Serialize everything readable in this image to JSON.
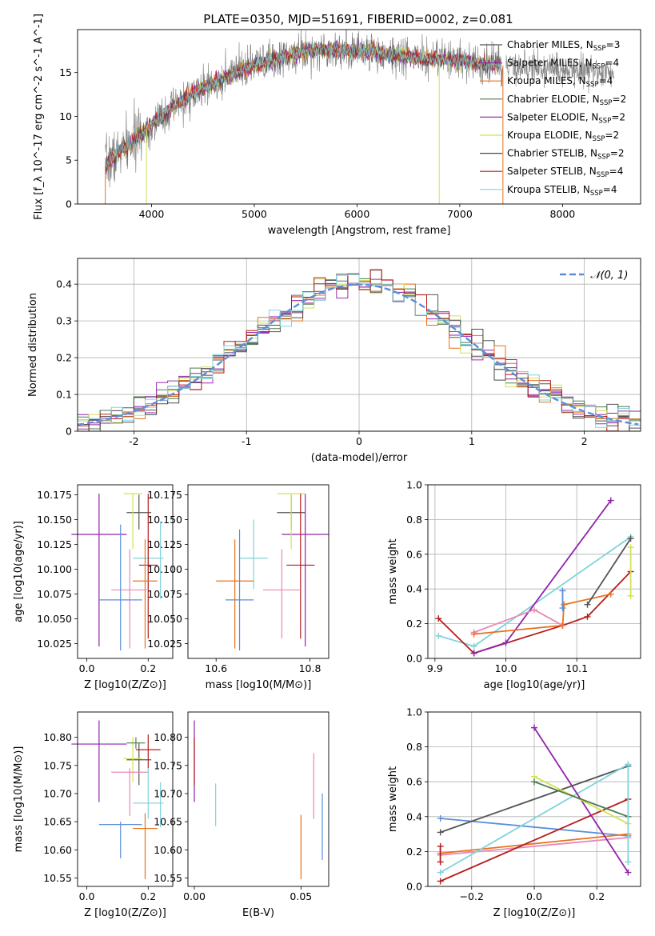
{
  "chart_data": [
    {
      "id": "spectrum",
      "type": "line",
      "title": "PLATE=0350, MJD=51691, FIBERID=0002, z=0.081",
      "xlabel": "wavelength [Angstrom, rest frame]",
      "ylabel": "Flux [f_λ 10^-17 erg cm^-2 s^-1 A^-1]",
      "xlim": [
        3280,
        8760
      ],
      "ylim": [
        0,
        19.9
      ],
      "xticks": [
        4000,
        5000,
        6000,
        7000,
        8000
      ],
      "yticks": [
        0,
        5,
        10,
        15
      ],
      "grid": false,
      "legend_position": "right",
      "series": [
        {
          "name": "Chabrier MILES",
          "nssp": "3",
          "color": "#555555"
        },
        {
          "name": "Salpeter MILES",
          "nssp": "4",
          "color": "#8e24aa"
        },
        {
          "name": "Kroupa MILES",
          "nssp": "4",
          "color": "#e8711a"
        },
        {
          "name": "Chabrier ELODIE",
          "nssp": "2",
          "color": "#4f7a4f"
        },
        {
          "name": "Salpeter ELODIE",
          "nssp": "2",
          "color": "#9a2fb0"
        },
        {
          "name": "Kroupa ELODIE",
          "nssp": "2",
          "color": "#d4e157"
        },
        {
          "name": "Chabrier STELIB",
          "nssp": "2",
          "color": "#4a4a4a"
        },
        {
          "name": "Salpeter STELIB",
          "nssp": "4",
          "color": "#b71c1c"
        },
        {
          "name": "Kroupa STELIB",
          "nssp": "4",
          "color": "#7fd3dc"
        }
      ],
      "continuum": {
        "wavelength": [
          3550,
          3700,
          3850,
          4000,
          4200,
          4400,
          4600,
          4800,
          5000,
          5200,
          5400,
          5600,
          5800,
          6000,
          6200,
          6400,
          6600,
          6800,
          7000,
          7200,
          7400
        ],
        "flux": [
          4.5,
          6.0,
          7.5,
          9.0,
          11.0,
          12.5,
          13.8,
          14.8,
          15.8,
          16.4,
          17.2,
          17.6,
          17.6,
          17.5,
          17.3,
          17.0,
          16.6,
          16.5,
          16.3,
          16.0,
          15.8
        ]
      },
      "extension": {
        "wavelength": [
          7450,
          8000,
          8500
        ],
        "flux": [
          15.8,
          15.3,
          15.0
        ],
        "color": "#808080"
      }
    },
    {
      "id": "residuals",
      "type": "histogram",
      "xlabel": "(data-model)/error",
      "ylabel": "Normed distribution",
      "xlim": [
        -2.5,
        2.5
      ],
      "ylim": [
        0,
        0.47
      ],
      "xticks": [
        -2,
        -1,
        0,
        1,
        2
      ],
      "yticks": [
        0.0,
        0.1,
        0.2,
        0.3,
        0.4
      ],
      "grid": true,
      "legend_position": "top-right",
      "legend": [
        {
          "label": "𝒩(0, 1)",
          "style": "dashed",
          "color": "#5a8fd8"
        }
      ],
      "bin_width": 0.1,
      "series_colors": [
        "#555555",
        "#8e24aa",
        "#e8711a",
        "#4f7a4f",
        "#9a2fb0",
        "#d4e157",
        "#4a4a4a",
        "#b71c1c",
        "#7fd3dc"
      ]
    },
    {
      "id": "age_vs_Z",
      "type": "errorbar",
      "xlabel": "Z [log10(Z/Z⊙)]",
      "ylabel": "age  [log10(age/yr)]",
      "xlim": [
        -0.03,
        0.28
      ],
      "ylim": [
        10.01,
        10.185
      ],
      "xticks": [
        0.0,
        0.2
      ],
      "xtick_labels": [
        "0.0",
        "0.2"
      ],
      "yticks": [
        10.025,
        10.05,
        10.075,
        10.1,
        10.125,
        10.15,
        10.175
      ],
      "ytick_labels": [
        "10.025",
        "10.050",
        "10.075",
        "10.100",
        "10.125",
        "10.150",
        "10.175"
      ],
      "grid": false,
      "points": [
        {
          "x": 0.04,
          "xerr": 0.09,
          "y": 10.135,
          "ylo": 10.022,
          "yhi": 10.176,
          "color": "#8e24aa"
        },
        {
          "x": 0.17,
          "xerr": 0.04,
          "y": 10.157,
          "ylo": 10.14,
          "yhi": 10.175,
          "color": "#555555"
        },
        {
          "x": 0.15,
          "xerr": 0.03,
          "y": 10.176,
          "ylo": 10.12,
          "yhi": 10.176,
          "color": "#d4e157"
        },
        {
          "x": 0.2,
          "xerr": 0.05,
          "y": 10.111,
          "ylo": 10.08,
          "yhi": 10.13,
          "color": "#7fd3dc"
        },
        {
          "x": 0.24,
          "xerr": 0.0,
          "y": 10.11,
          "ylo": 10.07,
          "yhi": 10.148,
          "color": "#7fd3dc"
        },
        {
          "x": 0.2,
          "xerr": 0.03,
          "y": 10.104,
          "ylo": 10.03,
          "yhi": 10.176,
          "color": "#b71c1c"
        },
        {
          "x": 0.19,
          "xerr": 0.04,
          "y": 10.088,
          "ylo": 10.02,
          "yhi": 10.13,
          "color": "#e8711a"
        },
        {
          "x": 0.14,
          "xerr": 0.06,
          "y": 10.079,
          "ylo": 10.02,
          "yhi": 10.12,
          "color": "#e889b5"
        },
        {
          "x": 0.11,
          "xerr": 0.07,
          "y": 10.069,
          "ylo": 10.018,
          "yhi": 10.145,
          "color": "#5a8fd8"
        }
      ]
    },
    {
      "id": "age_vs_mass",
      "type": "errorbar",
      "xlabel": "mass [log10(M/M⊙)]",
      "xlim": [
        10.54,
        10.84
      ],
      "ylim": [
        10.01,
        10.185
      ],
      "xticks": [
        10.6,
        10.8
      ],
      "xtick_labels": [
        "10.6",
        "10.8"
      ],
      "yticks": [
        10.025,
        10.05,
        10.075,
        10.1,
        10.125,
        10.15,
        10.175
      ],
      "ytick_labels": [
        "10.025",
        "10.050",
        "10.075",
        "10.100",
        "10.125",
        "10.150",
        "10.175"
      ],
      "grid": false,
      "points": [
        {
          "x": 10.79,
          "xerr": 0.05,
          "y": 10.135,
          "ylo": 10.022,
          "yhi": 10.176,
          "color": "#8e24aa"
        },
        {
          "x": 10.76,
          "xerr": 0.03,
          "y": 10.157,
          "ylo": 10.14,
          "yhi": 10.175,
          "color": "#555555"
        },
        {
          "x": 10.76,
          "xerr": 0.03,
          "y": 10.176,
          "ylo": 10.12,
          "yhi": 10.176,
          "color": "#d4e157"
        },
        {
          "x": 10.68,
          "xerr": 0.03,
          "y": 10.111,
          "ylo": 10.08,
          "yhi": 10.15,
          "color": "#7fd3dc"
        },
        {
          "x": 10.78,
          "xerr": 0.03,
          "y": 10.104,
          "ylo": 10.03,
          "yhi": 10.176,
          "color": "#b71c1c"
        },
        {
          "x": 10.64,
          "xerr": 0.04,
          "y": 10.088,
          "ylo": 10.02,
          "yhi": 10.13,
          "color": "#e8711a"
        },
        {
          "x": 10.74,
          "xerr": 0.04,
          "y": 10.079,
          "ylo": 10.03,
          "yhi": 10.12,
          "color": "#e889b5"
        },
        {
          "x": 10.65,
          "xerr": 0.03,
          "y": 10.069,
          "ylo": 10.018,
          "yhi": 10.14,
          "color": "#5a8fd8"
        }
      ]
    },
    {
      "id": "weight_vs_age",
      "type": "line",
      "xlabel": "age  [log10(age/yr)]",
      "ylabel": "mass weight",
      "xlim": [
        9.89,
        10.19
      ],
      "ylim": [
        0,
        1.0
      ],
      "xticks": [
        9.9,
        10.0,
        10.1
      ],
      "xtick_labels": [
        "9.9",
        "10.0",
        "10.1"
      ],
      "yticks": [
        0.0,
        0.2,
        0.4,
        0.6,
        0.8,
        1.0
      ],
      "ytick_labels": [
        "0.0",
        "0.2",
        "0.4",
        "0.6",
        "0.8",
        "1.0"
      ],
      "grid": true,
      "series": [
        {
          "color": "#7fd3dc",
          "x": [
            9.905,
            9.955,
            10.176
          ],
          "y": [
            0.13,
            0.07,
            0.7
          ]
        },
        {
          "color": "#b71c1c",
          "x": [
            9.905,
            9.955,
            10.08,
            10.115,
            10.176
          ],
          "y": [
            0.23,
            0.03,
            0.19,
            0.24,
            0.5
          ]
        },
        {
          "color": "#8e24aa",
          "x": [
            9.955,
            10.0,
            10.148
          ],
          "y": [
            0.03,
            0.09,
            0.91
          ]
        },
        {
          "color": "#e889b5",
          "x": [
            9.955,
            10.04,
            10.08
          ],
          "y": [
            0.15,
            0.28,
            0.19
          ]
        },
        {
          "color": "#e8711a",
          "x": [
            9.955,
            10.08,
            10.082,
            10.148
          ],
          "y": [
            0.14,
            0.19,
            0.31,
            0.37
          ]
        },
        {
          "color": "#5a8fd8",
          "x": [
            10.08,
            10.08
          ],
          "y": [
            0.29,
            0.39
          ]
        },
        {
          "color": "#555555",
          "x": [
            10.115,
            10.176
          ],
          "y": [
            0.31,
            0.69
          ]
        },
        {
          "color": "#d4e157",
          "x": [
            10.176,
            10.176
          ],
          "y": [
            0.36,
            0.64
          ]
        }
      ]
    },
    {
      "id": "mass_vs_Z",
      "type": "errorbar",
      "xlabel": "Z [log10(Z/Z⊙)]",
      "ylabel": "mass [log10(M/M⊙)]",
      "xlim": [
        -0.03,
        0.28
      ],
      "ylim": [
        10.535,
        10.845
      ],
      "xticks": [
        0.0,
        0.2
      ],
      "xtick_labels": [
        "0.0",
        "0.2"
      ],
      "yticks": [
        10.55,
        10.6,
        10.65,
        10.7,
        10.75,
        10.8
      ],
      "ytick_labels": [
        "10.55",
        "10.60",
        "10.65",
        "10.70",
        "10.75",
        "10.80"
      ],
      "grid": false,
      "points": [
        {
          "x": 0.04,
          "xerr": 0.09,
          "y": 10.788,
          "ylo": 10.685,
          "yhi": 10.83,
          "color": "#8e24aa"
        },
        {
          "x": 0.17,
          "xerr": 0.04,
          "y": 10.76,
          "ylo": 10.715,
          "yhi": 10.79,
          "color": "#555555"
        },
        {
          "x": 0.15,
          "xerr": 0.03,
          "y": 10.762,
          "ylo": 10.72,
          "yhi": 10.8,
          "color": "#d4e157"
        },
        {
          "x": 0.16,
          "xerr": 0.03,
          "y": 10.79,
          "ylo": 10.78,
          "yhi": 10.8,
          "color": "#4f7a4f"
        },
        {
          "x": 0.2,
          "xerr": 0.04,
          "y": 10.778,
          "ylo": 10.745,
          "yhi": 10.805,
          "color": "#b71c1c"
        },
        {
          "x": 0.14,
          "xerr": 0.06,
          "y": 10.738,
          "ylo": 10.66,
          "yhi": 10.745,
          "color": "#e889b5"
        },
        {
          "x": 0.2,
          "xerr": 0.05,
          "y": 10.683,
          "ylo": 10.655,
          "yhi": 10.745,
          "color": "#7fd3dc"
        },
        {
          "x": 0.24,
          "xerr": 0.0,
          "y": 10.68,
          "ylo": 10.64,
          "yhi": 10.72,
          "color": "#7fd3dc"
        },
        {
          "x": 0.11,
          "xerr": 0.07,
          "y": 10.645,
          "ylo": 10.585,
          "yhi": 10.65,
          "color": "#5a8fd8"
        },
        {
          "x": 0.19,
          "xerr": 0.04,
          "y": 10.638,
          "ylo": 10.548,
          "yhi": 10.665,
          "color": "#e8711a"
        }
      ]
    },
    {
      "id": "mass_vs_ebv",
      "type": "errorbar",
      "xlabel": "E(B-V)",
      "xlim": [
        -0.003,
        0.063
      ],
      "ylim": [
        10.535,
        10.845
      ],
      "xticks": [
        0.0,
        0.05
      ],
      "xtick_labels": [
        "0.00",
        "0.05"
      ],
      "yticks": [
        10.55,
        10.6,
        10.65,
        10.7,
        10.75,
        10.8
      ],
      "ytick_labels": [
        "10.55",
        "10.60",
        "10.65",
        "10.70",
        "10.75",
        "10.80"
      ],
      "grid": false,
      "points": [
        {
          "x": 0.0,
          "ylo": 10.685,
          "yhi": 10.83,
          "color": "#8e24aa"
        },
        {
          "x": 0.0,
          "ylo": 10.715,
          "yhi": 10.8,
          "color": "#b71c1c"
        },
        {
          "x": 0.01,
          "ylo": 10.642,
          "yhi": 10.718,
          "color": "#7fd3dc"
        },
        {
          "x": 0.05,
          "ylo": 10.548,
          "yhi": 10.662,
          "color": "#e8711a"
        },
        {
          "x": 0.056,
          "ylo": 10.655,
          "yhi": 10.772,
          "color": "#e889b5"
        },
        {
          "x": 0.06,
          "ylo": 10.582,
          "yhi": 10.7,
          "color": "#5a8fd8"
        }
      ]
    },
    {
      "id": "weight_vs_Z",
      "type": "line",
      "xlabel": "Z [log10(Z/Z⊙)]",
      "ylabel": "mass weight",
      "xlim": [
        -0.34,
        0.34
      ],
      "ylim": [
        0,
        1.0
      ],
      "xticks": [
        -0.2,
        0.0,
        0.2
      ],
      "xtick_labels": [
        "−0.2",
        "0.0",
        "0.2"
      ],
      "yticks": [
        0.0,
        0.2,
        0.4,
        0.6,
        0.8,
        1.0
      ],
      "ytick_labels": [
        "0.0",
        "0.2",
        "0.4",
        "0.6",
        "0.8",
        "1.0"
      ],
      "grid": true,
      "series": [
        {
          "color": "#5a8fd8",
          "x": [
            -0.3,
            0.3
          ],
          "y": [
            0.39,
            0.29
          ]
        },
        {
          "color": "#555555",
          "x": [
            -0.3,
            0.3
          ],
          "y": [
            0.31,
            0.69
          ]
        },
        {
          "color": "#e8711a",
          "x": [
            -0.3,
            0.3
          ],
          "y": [
            0.19,
            0.3
          ]
        },
        {
          "color": "#e889b5",
          "x": [
            -0.3,
            0.3
          ],
          "y": [
            0.18,
            0.28
          ]
        },
        {
          "color": "#7fd3dc",
          "x": [
            -0.3,
            0.3
          ],
          "y": [
            0.08,
            0.7
          ]
        },
        {
          "color": "#b71c1c",
          "x": [
            -0.3,
            0.3
          ],
          "y": [
            0.03,
            0.5
          ]
        },
        {
          "color": "#8e24aa",
          "x": [
            0.0,
            0.3
          ],
          "y": [
            0.91,
            0.08
          ]
        },
        {
          "color": "#d4e157",
          "x": [
            0.0,
            0.3
          ],
          "y": [
            0.63,
            0.36
          ]
        },
        {
          "color": "#4f7a4f",
          "x": [
            0.0,
            0.3
          ],
          "y": [
            0.6,
            0.4
          ]
        },
        {
          "color": "#7fd3dc",
          "x": [
            0.3,
            0.3
          ],
          "y": [
            0.14,
            0.7
          ]
        },
        {
          "color": "#b71c1c",
          "x": [
            -0.3,
            -0.3
          ],
          "y": [
            0.14,
            0.23
          ]
        }
      ]
    }
  ]
}
